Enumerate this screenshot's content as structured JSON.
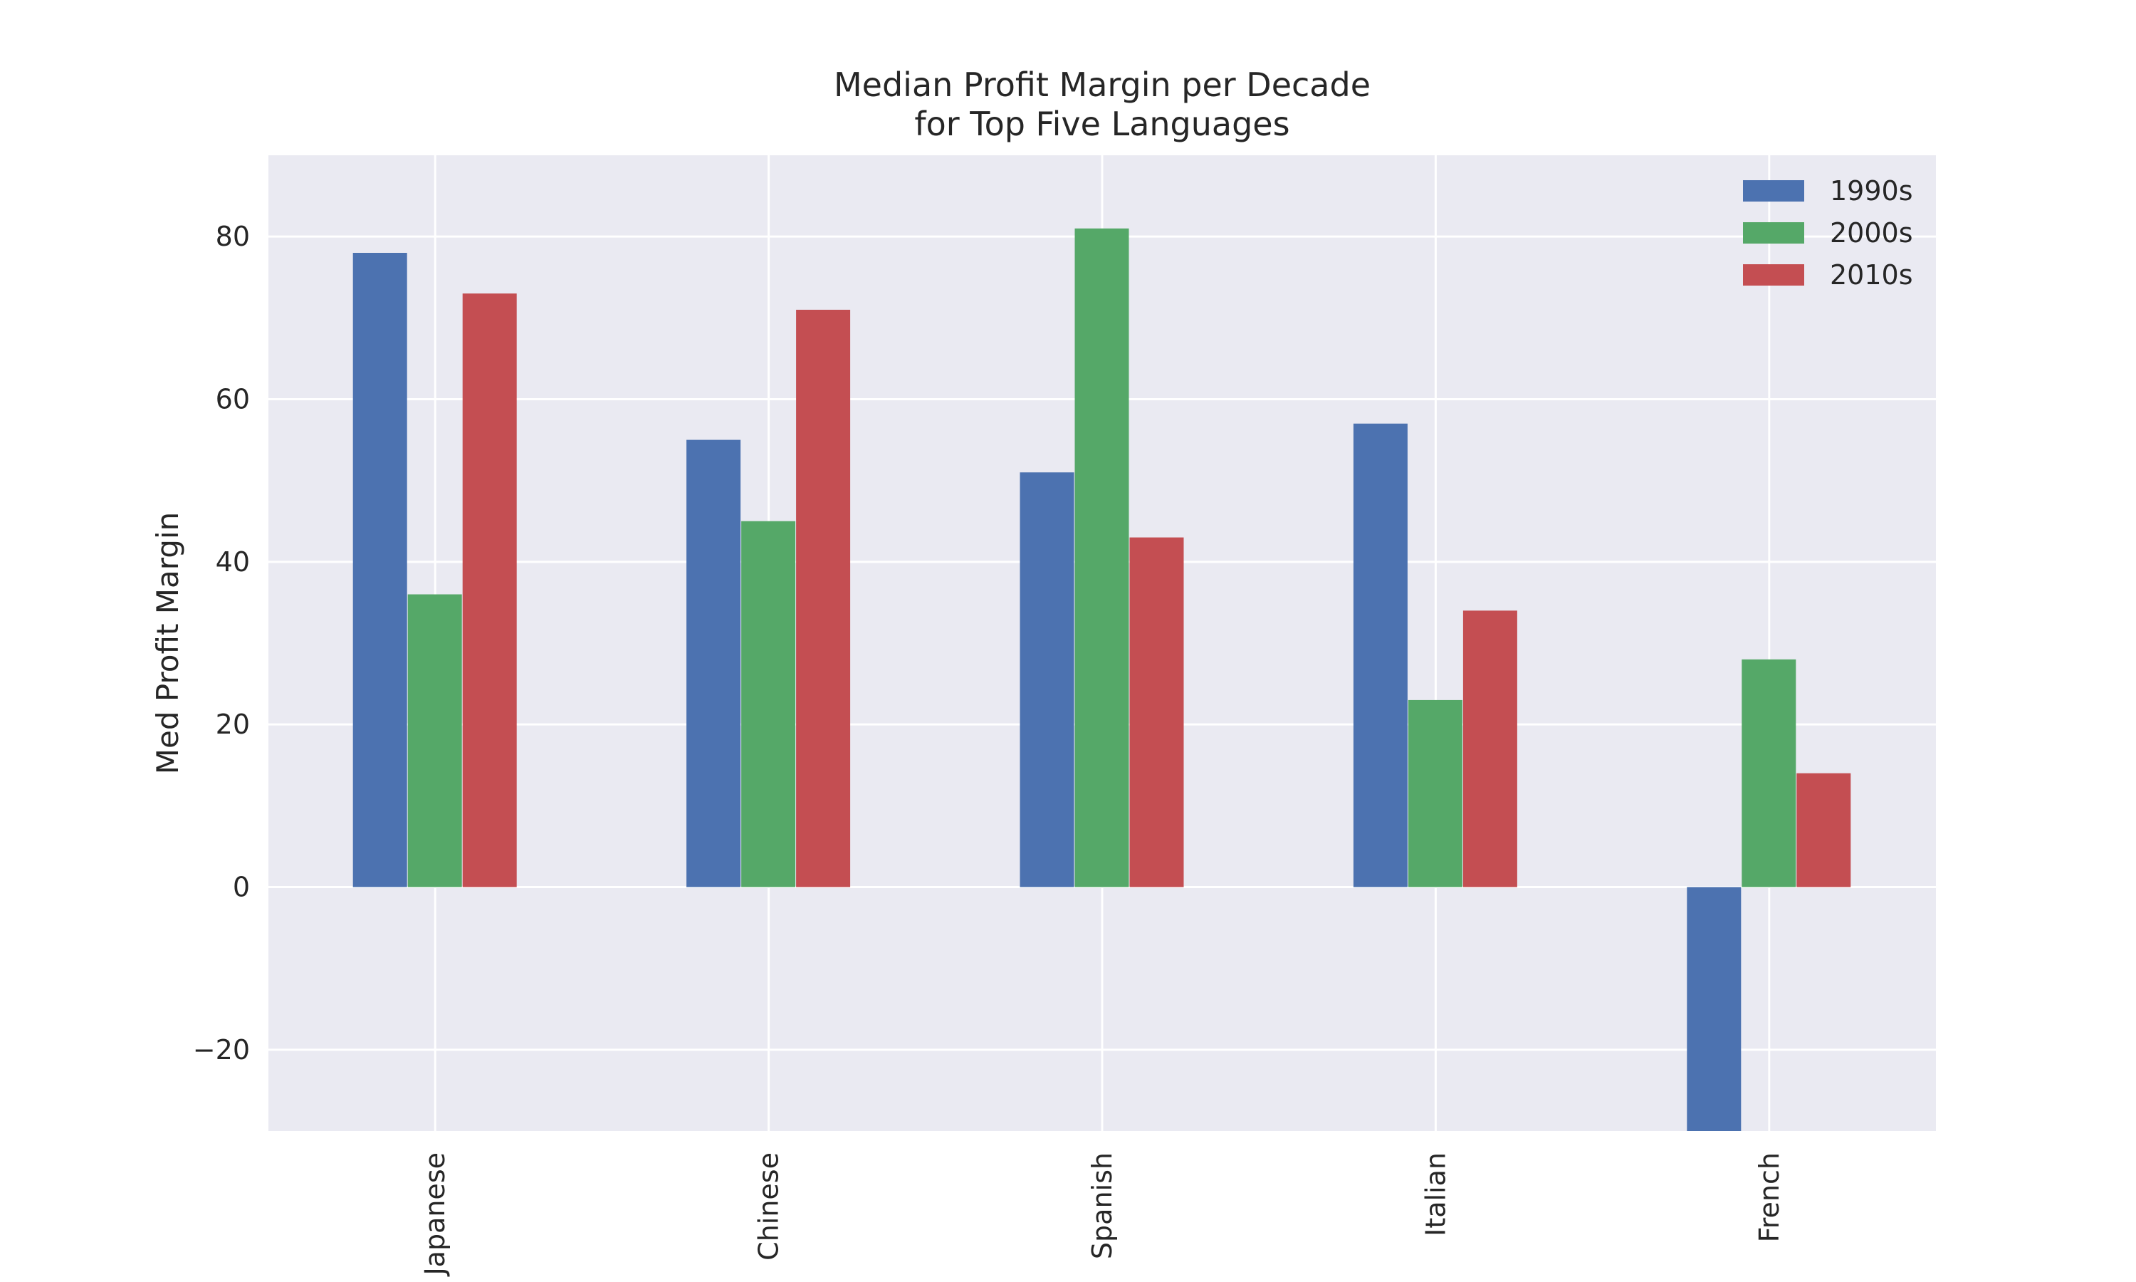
{
  "chart_data": {
    "type": "bar",
    "title_line1": "Median Profit Margin per Decade",
    "title_line2": "for Top Five Languages",
    "xlabel": "",
    "ylabel": "Med Profit Margin",
    "categories": [
      "Japanese",
      "Chinese",
      "Spanish",
      "Italian",
      "French"
    ],
    "series": [
      {
        "name": "1990s",
        "color": "#4C72B0",
        "values": [
          78,
          55,
          51,
          57,
          -30
        ]
      },
      {
        "name": "2000s",
        "color": "#55A868",
        "values": [
          36,
          45,
          81,
          23,
          28
        ]
      },
      {
        "name": "2010s",
        "color": "#C44E52",
        "values": [
          73,
          71,
          43,
          34,
          14
        ]
      }
    ],
    "ylim": [
      -30,
      90
    ],
    "yticks": [
      -20,
      0,
      20,
      40,
      60,
      80
    ],
    "ytick_labels": [
      "−20",
      "0",
      "20",
      "40",
      "60",
      "80"
    ],
    "grid": true,
    "legend_position": "top-right",
    "background_color": "#EAEAF2"
  }
}
